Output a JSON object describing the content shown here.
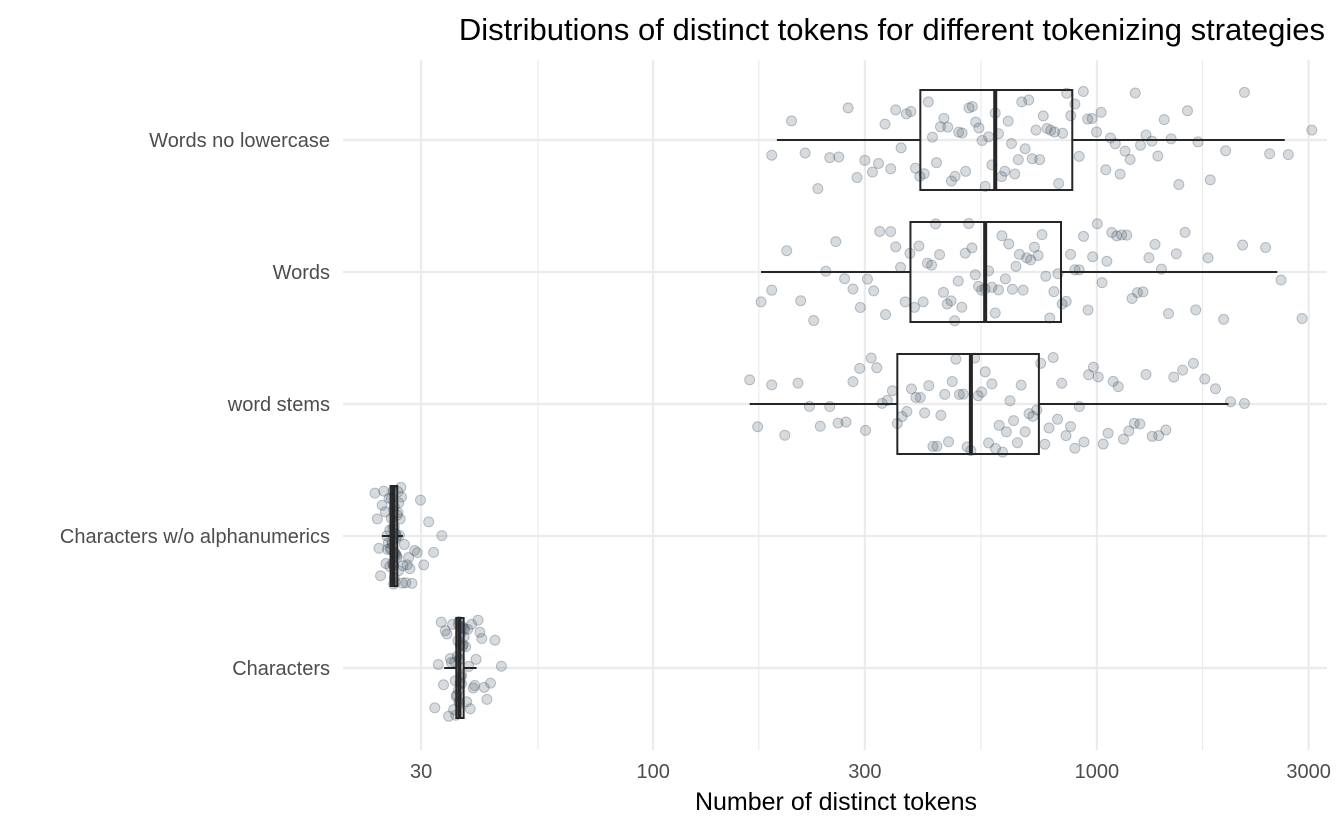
{
  "chart_data": {
    "type": "boxplot",
    "title": "Distributions of distinct tokens for different tokenizing strategies",
    "xlabel": "Number of distinct tokens",
    "ylabel": "",
    "x_scale": "log10",
    "xlim": [
      20,
      3300
    ],
    "x_ticks": [
      30,
      100,
      300,
      1000,
      3000
    ],
    "x_tick_labels": [
      "30",
      "100",
      "300",
      "1000",
      "3000"
    ],
    "x_minor_ticks": [
      55,
      173,
      548,
      1730
    ],
    "grid": true,
    "legend": "none",
    "colors": {
      "point": "#4b5a6a",
      "box_line": "#262626",
      "grid": "#ebebeb"
    },
    "categories": [
      "Characters",
      "Characters w/o alphanumerics",
      "word stems",
      "Words",
      "Words no lowercase"
    ],
    "series": [
      {
        "category": "Words no lowercase",
        "whisker_low": 190,
        "q1": 400,
        "median": 590,
        "q3": 880,
        "whisker_high": 2650,
        "points": [
          185,
          205,
          220,
          235,
          250,
          262,
          275,
          288,
          300,
          312,
          322,
          333,
          343,
          352,
          362,
          372,
          381,
          390,
          399,
          408,
          417,
          426,
          435,
          444,
          452,
          461,
          470,
          479,
          488,
          497,
          506,
          515,
          524,
          533,
          542,
          551,
          560,
          570,
          580,
          590,
          600,
          610,
          620,
          631,
          642,
          653,
          665,
          677,
          689,
          702,
          715,
          729,
          743,
          757,
          772,
          787,
          803,
          820,
          837,
          855,
          873,
          892,
          912,
          932,
          953,
          975,
          998,
          1022,
          1047,
          1073,
          1100,
          1128,
          1157,
          1188,
          1220,
          1254,
          1290,
          1330,
          1372,
          1418,
          1470,
          1530,
          1600,
          1690,
          1800,
          1950,
          2150,
          2450,
          2700,
          3050
        ]
      },
      {
        "category": "Words",
        "whisker_low": 175,
        "q1": 380,
        "median": 560,
        "q3": 830,
        "whisker_high": 2550,
        "points": [
          175,
          185,
          200,
          215,
          230,
          245,
          258,
          270,
          282,
          293,
          304,
          314,
          324,
          334,
          343,
          352,
          361,
          370,
          379,
          388,
          397,
          406,
          415,
          424,
          433,
          442,
          451,
          460,
          469,
          478,
          487,
          496,
          505,
          514,
          523,
          532,
          541,
          550,
          560,
          570,
          580,
          590,
          600,
          611,
          622,
          633,
          645,
          657,
          669,
          682,
          695,
          709,
          723,
          737,
          752,
          767,
          783,
          800,
          817,
          835,
          853,
          872,
          892,
          912,
          933,
          955,
          978,
          1002,
          1027,
          1053,
          1080,
          1108,
          1137,
          1168,
          1200,
          1234,
          1270,
          1310,
          1352,
          1398,
          1450,
          1510,
          1580,
          1670,
          1780,
          1930,
          2130,
          2400,
          2600,
          2900
        ]
      },
      {
        "category": "word stems",
        "whisker_low": 165,
        "q1": 355,
        "median": 520,
        "q3": 740,
        "whisker_high": 1980,
        "points": [
          165,
          172,
          185,
          198,
          212,
          225,
          238,
          250,
          261,
          272,
          282,
          292,
          301,
          310,
          319,
          328,
          337,
          346,
          355,
          364,
          373,
          382,
          391,
          400,
          409,
          418,
          427,
          436,
          445,
          454,
          463,
          472,
          481,
          490,
          500,
          510,
          520,
          530,
          540,
          550,
          560,
          570,
          580,
          591,
          602,
          613,
          625,
          637,
          649,
          662,
          675,
          689,
          703,
          717,
          732,
          747,
          763,
          780,
          797,
          815,
          833,
          852,
          872,
          892,
          913,
          935,
          958,
          982,
          1007,
          1033,
          1060,
          1088,
          1117,
          1148,
          1180,
          1214,
          1250,
          1290,
          1332,
          1378,
          1430,
          1490,
          1560,
          1650,
          1750,
          1850,
          2000,
          2150
        ]
      },
      {
        "category": "Characters w/o alphanumerics",
        "whisker_low": 24.5,
        "q1": 25.6,
        "median": 26.0,
        "q3": 26.5,
        "whisker_high": 27.3,
        "points": [
          23.6,
          23.9,
          24.1,
          24.3,
          24.5,
          24.7,
          24.9,
          25.0,
          25.1,
          25.2,
          25.3,
          25.4,
          25.5,
          25.5,
          25.6,
          25.6,
          25.7,
          25.7,
          25.8,
          25.8,
          25.9,
          25.9,
          25.9,
          26.0,
          26.0,
          26.0,
          26.0,
          26.1,
          26.1,
          26.1,
          26.1,
          26.2,
          26.2,
          26.2,
          26.3,
          26.3,
          26.3,
          26.4,
          26.4,
          26.5,
          26.5,
          26.6,
          26.6,
          26.7,
          26.7,
          26.8,
          26.9,
          27.0,
          27.1,
          27.2,
          27.3,
          27.5,
          27.7,
          27.9,
          28.1,
          28.3,
          28.6,
          29.0,
          29.4,
          29.9,
          30.4,
          31.2,
          32.0,
          33.4
        ]
      },
      {
        "category": "Characters",
        "whisker_low": 33.8,
        "q1": 36.0,
        "median": 36.6,
        "q3": 37.4,
        "whisker_high": 40.0,
        "points": [
          32.2,
          32.8,
          33.3,
          33.7,
          34.0,
          34.3,
          34.6,
          34.9,
          35.1,
          35.3,
          35.5,
          35.7,
          35.8,
          35.9,
          36.0,
          36.1,
          36.2,
          36.3,
          36.4,
          36.4,
          36.5,
          36.5,
          36.6,
          36.6,
          36.7,
          36.7,
          36.8,
          36.8,
          36.9,
          37.0,
          37.0,
          37.1,
          37.2,
          37.3,
          37.4,
          37.5,
          37.6,
          37.8,
          38.0,
          38.2,
          38.4,
          38.7,
          39.0,
          39.3,
          39.6,
          39.9,
          40.3,
          40.7,
          41.1,
          41.6,
          42.2,
          43.0,
          44.0,
          45.5
        ]
      }
    ]
  }
}
